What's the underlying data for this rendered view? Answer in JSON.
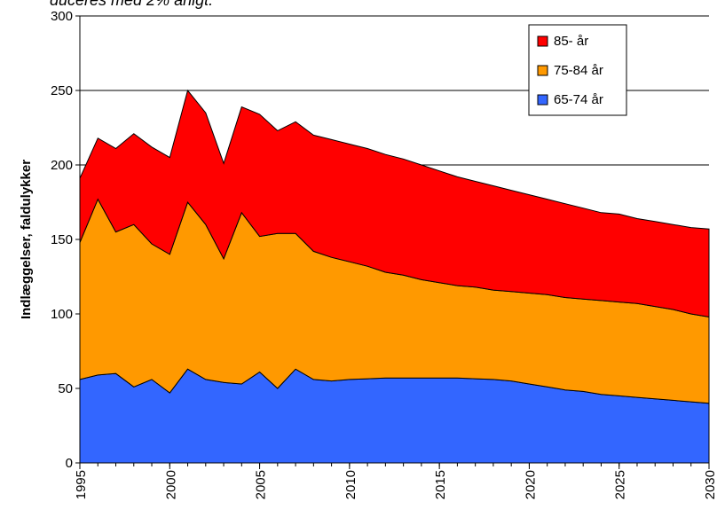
{
  "chart_data": {
    "type": "stacked-area",
    "title": "duceres med 2% årligt.",
    "y_label": "Indlæggelser, faldulykker",
    "x": [
      1995,
      1996,
      1997,
      1998,
      1999,
      2000,
      2001,
      2002,
      2003,
      2004,
      2005,
      2006,
      2007,
      2008,
      2009,
      2010,
      2011,
      2012,
      2013,
      2014,
      2015,
      2016,
      2017,
      2018,
      2019,
      2020,
      2021,
      2022,
      2023,
      2024,
      2025,
      2026,
      2027,
      2028,
      2029,
      2030
    ],
    "series": [
      {
        "name": "65-74 år",
        "color": "#3366ff",
        "values": [
          56,
          59,
          60,
          51,
          56,
          47,
          63,
          56,
          54,
          53,
          61,
          50,
          63,
          56,
          55,
          56,
          56.5,
          57,
          57,
          57,
          57,
          57,
          56.5,
          56,
          55,
          53,
          51,
          49,
          48,
          46,
          45,
          44,
          43,
          42,
          41,
          40
        ]
      },
      {
        "name": "75-84 år",
        "color": "#ff9900",
        "values": [
          92,
          118,
          95,
          109,
          91,
          93,
          112,
          104,
          83,
          115,
          91,
          104,
          91,
          86,
          83,
          79,
          75.5,
          71,
          69,
          66,
          64,
          62,
          61.5,
          60,
          60,
          61,
          62,
          62,
          62,
          63,
          63,
          63,
          62,
          61,
          59,
          58
        ]
      },
      {
        "name": "85- år",
        "color": "#ff0000",
        "values": [
          43,
          41,
          56,
          61,
          65,
          65,
          75,
          75,
          64,
          71,
          82,
          69,
          75,
          78,
          79,
          79,
          79,
          79,
          78,
          77,
          75,
          73,
          71,
          70,
          68,
          66,
          64,
          63,
          61,
          59,
          59,
          57,
          57,
          57,
          58,
          59
        ]
      }
    ],
    "xlim": [
      1995,
      2030
    ],
    "xticks": [
      1995,
      2000,
      2005,
      2010,
      2015,
      2020,
      2025,
      2030
    ],
    "ylim": [
      0,
      300
    ],
    "yticks": [
      0,
      50,
      100,
      150,
      200,
      250,
      300
    ],
    "grid": true,
    "legend": "top-right"
  }
}
